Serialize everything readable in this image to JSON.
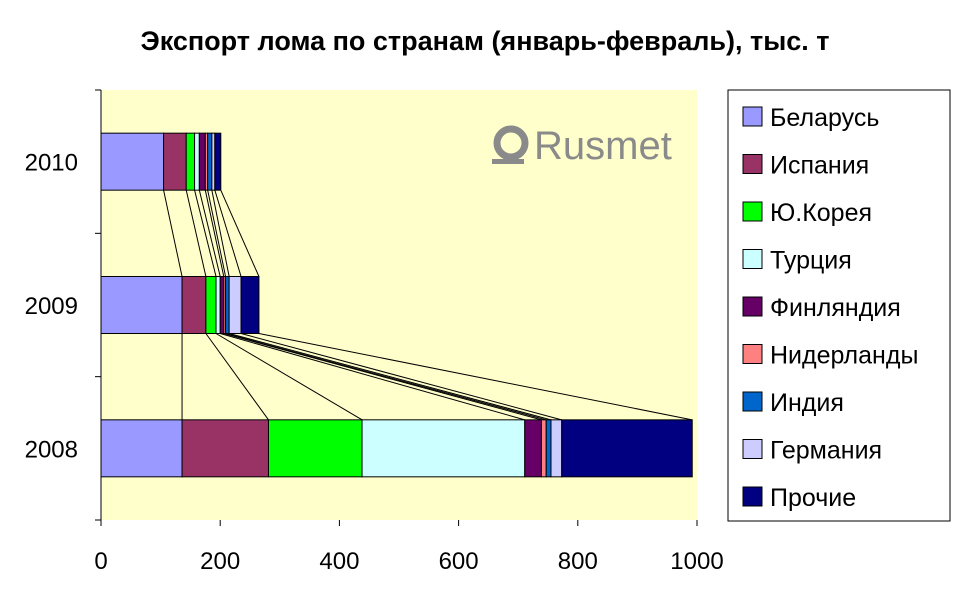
{
  "chart_data": {
    "type": "bar",
    "orientation": "horizontal",
    "stacked": true,
    "title": "Экспорт лома по странам (январь-февраль), тыс. т",
    "categories": [
      "2010",
      "2009",
      "2008"
    ],
    "series": [
      {
        "name": "Беларусь",
        "color": "#9999FF",
        "values": [
          105,
          136,
          136
        ]
      },
      {
        "name": "Испания",
        "color": "#993366",
        "values": [
          38,
          40,
          145
        ]
      },
      {
        "name": "Ю.Корея",
        "color": "#00FF00",
        "values": [
          14,
          17,
          157
        ]
      },
      {
        "name": "Турция",
        "color": "#CCFFFF",
        "values": [
          8,
          7,
          273
        ]
      },
      {
        "name": "Финляндия",
        "color": "#660066",
        "values": [
          10,
          6,
          28
        ]
      },
      {
        "name": "Нидерланды",
        "color": "#FF8080",
        "values": [
          4,
          3,
          8
        ]
      },
      {
        "name": "Индия",
        "color": "#0066CC",
        "values": [
          7,
          6,
          8
        ]
      },
      {
        "name": "Германия",
        "color": "#CCCCFF",
        "values": [
          5,
          20,
          18
        ]
      },
      {
        "name": "Прочие",
        "color": "#000080",
        "values": [
          10,
          30,
          219
        ]
      }
    ],
    "xlim": [
      0,
      1000
    ],
    "xticks": [
      "0",
      "200",
      "400",
      "600",
      "800",
      "1000"
    ],
    "series_lines": true,
    "plot_background": "#FFFFCC",
    "legend_position": "right",
    "grid": false
  },
  "watermark": {
    "text": "Rusmet",
    "icon": "rusmet-logo-icon"
  }
}
